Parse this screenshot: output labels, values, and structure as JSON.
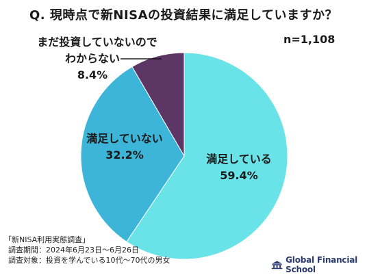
{
  "title": "Q. 現時点で新NISAの投資結果に満足していますか？",
  "sample_size": "n=1,108",
  "chart_data": {
    "type": "pie",
    "title": "Q. 現時点で新NISAの投資結果に満足していますか？",
    "slices": [
      {
        "label": "満足している",
        "value": 59.4,
        "value_label": "59.4%",
        "color": "#6ae3e8"
      },
      {
        "label": "満足していない",
        "value": 32.2,
        "value_label": "32.2%",
        "color": "#3db5d8"
      },
      {
        "label_lines": [
          "まだ投資していないので",
          "わからない"
        ],
        "value": 8.4,
        "value_label": "8.4%",
        "color": "#5c3766"
      }
    ]
  },
  "footer": {
    "survey_name": "「新NISA利用実態調査」",
    "period": "調査期間：2024年6月23日～6月26日",
    "target": "調査対象：投資を学んでいる10代～70代の男女"
  },
  "brand": {
    "name": "Global Financial School",
    "logo_icon": "school-building-icon",
    "color": "#2a3a6e"
  }
}
